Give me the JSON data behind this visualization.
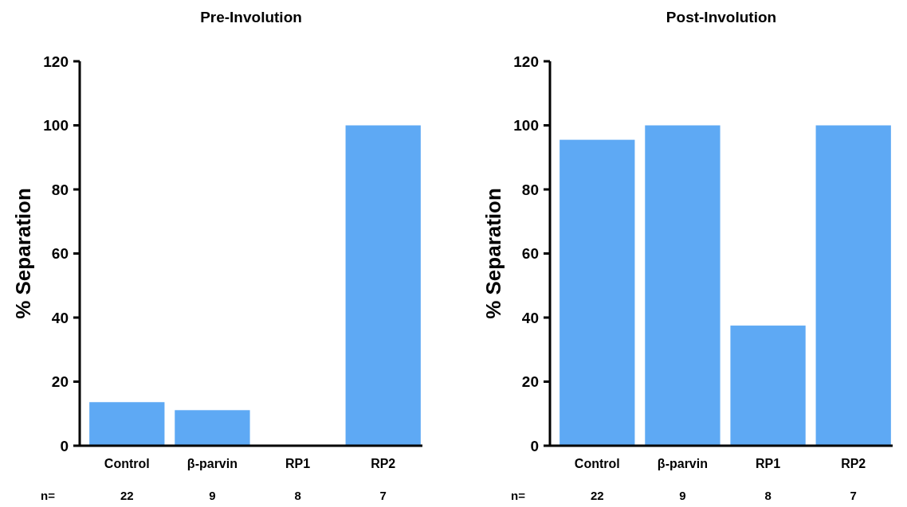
{
  "chart_data": [
    {
      "type": "bar",
      "title": "Pre-Involution",
      "ylabel": "% Separation",
      "categories": [
        "Control",
        "β-parvin",
        "RP1",
        "RP2"
      ],
      "values": [
        13.6,
        11.1,
        0,
        100
      ],
      "color": "#5ea9f4",
      "ylim": [
        0,
        120
      ],
      "yticks": [
        0,
        20,
        40,
        60,
        80,
        100,
        120
      ],
      "grid": false,
      "annotations": [
        "n=",
        "22",
        "9",
        "8",
        "7"
      ]
    },
    {
      "type": "bar",
      "title": "Post-Involution",
      "ylabel": "% Separation",
      "categories": [
        "Control",
        "β-parvin",
        "RP1",
        "RP2"
      ],
      "values": [
        95.5,
        100,
        37.5,
        100
      ],
      "color": "#5ea9f4",
      "ylim": [
        0,
        120
      ],
      "yticks": [
        0,
        20,
        40,
        60,
        80,
        100,
        120
      ],
      "grid": false,
      "annotations": [
        "n=",
        "22",
        "9",
        "8",
        "7"
      ]
    }
  ]
}
